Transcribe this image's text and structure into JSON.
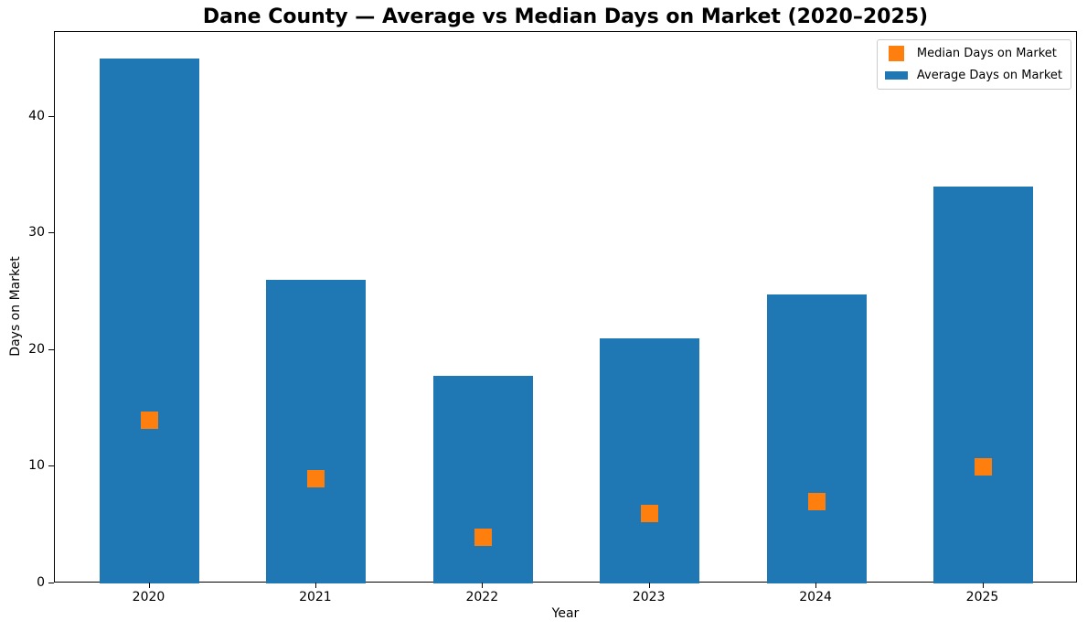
{
  "chart_data": {
    "type": "bar",
    "title": "Dane County — Average vs Median Days on Market (2020–2025)",
    "xlabel": "Year",
    "ylabel": "Days on Market",
    "categories": [
      "2020",
      "2021",
      "2022",
      "2023",
      "2024",
      "2025"
    ],
    "series": [
      {
        "name": "Average Days on Market",
        "kind": "bar",
        "color": "#1f77b4",
        "values": [
          45,
          26,
          17.8,
          21,
          24.8,
          34
        ]
      },
      {
        "name": "Median Days on Market",
        "kind": "scatter",
        "marker": "square",
        "color": "#ff7f0e",
        "values": [
          14,
          9,
          4,
          6,
          7,
          10
        ]
      }
    ],
    "ylim": [
      0,
      47.25
    ],
    "yticks": [
      0,
      10,
      20,
      30,
      40
    ],
    "legend": {
      "position": "upper right",
      "entries": [
        "Median Days on Market",
        "Average Days on Market"
      ]
    },
    "grid": false,
    "colors": {
      "bar_blue": "#1f77b4",
      "marker_orange": "#ff7f0e",
      "axis": "#000000",
      "legend_border": "#cccccc"
    }
  }
}
